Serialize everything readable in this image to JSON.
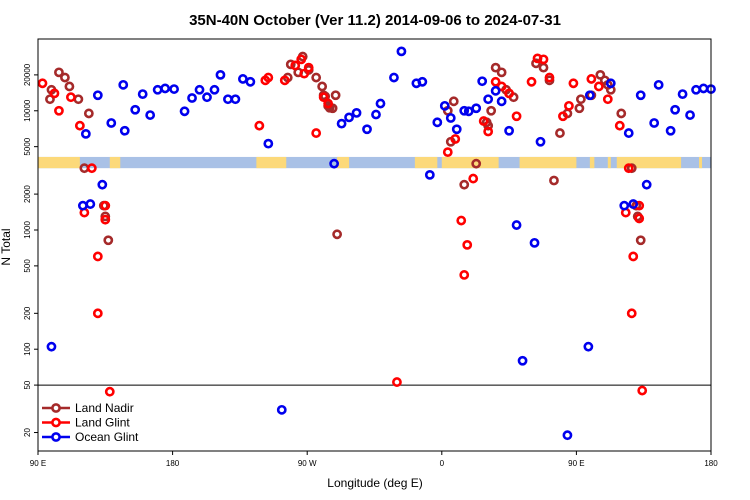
{
  "chart_data": {
    "type": "scatter",
    "title": "35N-40N October (Ver 11.2)   2014-09-06 to 2024-07-31",
    "xlabel": "Longitude (deg E)",
    "ylabel": "N Total",
    "x_scale": "linear",
    "y_scale": "log",
    "xlim": [
      90,
      540
    ],
    "ylim": [
      14,
      40000
    ],
    "x_ticks": [
      {
        "value": 90,
        "label": "90 E"
      },
      {
        "value": 180,
        "label": "180"
      },
      {
        "value": 270,
        "label": "90 W"
      },
      {
        "value": 360,
        "label": "0"
      },
      {
        "value": 450,
        "label": "90 E"
      },
      {
        "value": 540,
        "label": "180"
      }
    ],
    "y_ticks": [
      {
        "value": 20,
        "label": "20"
      },
      {
        "value": 50,
        "label": "50"
      },
      {
        "value": 100,
        "label": "100"
      },
      {
        "value": 200,
        "label": "200"
      },
      {
        "value": 500,
        "label": "500"
      },
      {
        "value": 1000,
        "label": "1000"
      },
      {
        "value": 2000,
        "label": "2000"
      },
      {
        "value": 5000,
        "label": "5000"
      },
      {
        "value": 10000,
        "label": "10000"
      },
      {
        "value": 20000,
        "label": "20000"
      }
    ],
    "reference_line_y": 50,
    "land_mask_band": {
      "y_range": [
        3300,
        4100
      ],
      "land_color": "#fcd97a",
      "ocean_color": "#a9c1e6",
      "land_longitudes": [
        [
          90,
          118
        ],
        [
          138,
          145
        ],
        [
          236,
          256
        ],
        [
          290,
          298
        ],
        [
          342,
          357
        ],
        [
          360,
          398
        ],
        [
          412,
          450
        ],
        [
          459,
          462
        ],
        [
          471,
          473
        ],
        [
          477,
          520
        ],
        [
          532,
          534
        ]
      ]
    },
    "legend": {
      "position": "bottom-left",
      "entries": [
        "Land Nadir",
        "Land Glint",
        "Ocean Glint"
      ]
    },
    "series": [
      {
        "name": "Land Nadir",
        "color": "#a52a2a",
        "points": [
          [
            98,
            12500
          ],
          [
            99,
            15000
          ],
          [
            104,
            21000
          ],
          [
            108,
            19000
          ],
          [
            111,
            16000
          ],
          [
            117,
            12500
          ],
          [
            121,
            3300
          ],
          [
            124,
            9500
          ],
          [
            134,
            1600
          ],
          [
            135,
            1300
          ],
          [
            137,
            820
          ],
          [
            257,
            19000
          ],
          [
            259,
            24500
          ],
          [
            264,
            21000
          ],
          [
            267,
            28500
          ],
          [
            271,
            22000
          ],
          [
            276,
            19000
          ],
          [
            280,
            16000
          ],
          [
            281,
            13500
          ],
          [
            284,
            11000
          ],
          [
            287,
            10500
          ],
          [
            289,
            13500
          ],
          [
            282,
            13200
          ],
          [
            285,
            10600
          ],
          [
            290,
            920
          ],
          [
            364,
            10000
          ],
          [
            366,
            5500
          ],
          [
            368,
            12000
          ],
          [
            375,
            2400
          ],
          [
            383,
            3600
          ],
          [
            390,
            8000
          ],
          [
            391,
            7500
          ],
          [
            393,
            10000
          ],
          [
            396,
            23000
          ],
          [
            400,
            21000
          ],
          [
            403,
            15000
          ],
          [
            408,
            13000
          ],
          [
            423,
            25000
          ],
          [
            428,
            23000
          ],
          [
            432,
            18000
          ],
          [
            435,
            2600
          ],
          [
            439,
            6500
          ],
          [
            444,
            9500
          ],
          [
            452,
            10500
          ],
          [
            453,
            12500
          ],
          [
            460,
            13500
          ],
          [
            466,
            20000
          ],
          [
            469,
            18000
          ],
          [
            471,
            16500
          ],
          [
            473,
            15000
          ],
          [
            480,
            9500
          ],
          [
            487,
            3300
          ],
          [
            490,
            1600
          ],
          [
            491,
            1300
          ],
          [
            493,
            820
          ]
        ]
      },
      {
        "name": "Land Glint",
        "color": "#ff0000",
        "points": [
          [
            93,
            17000
          ],
          [
            101,
            14000
          ],
          [
            104,
            10000
          ],
          [
            112,
            13000
          ],
          [
            118,
            7500
          ],
          [
            121,
            1400
          ],
          [
            126,
            3300
          ],
          [
            130,
            600
          ],
          [
            135,
            1600
          ],
          [
            135,
            1220
          ],
          [
            138,
            44
          ],
          [
            130,
            200
          ],
          [
            238,
            7500
          ],
          [
            242,
            18000
          ],
          [
            244,
            19000
          ],
          [
            255,
            18000
          ],
          [
            262,
            24000
          ],
          [
            266,
            27000
          ],
          [
            268,
            20500
          ],
          [
            271,
            23000
          ],
          [
            276,
            6500
          ],
          [
            281,
            13000
          ],
          [
            284,
            11500
          ],
          [
            330,
            53
          ],
          [
            364,
            4500
          ],
          [
            369,
            5800
          ],
          [
            373,
            1200
          ],
          [
            375,
            420
          ],
          [
            377,
            750
          ],
          [
            381,
            2700
          ],
          [
            388,
            8200
          ],
          [
            391,
            6700
          ],
          [
            396,
            17500
          ],
          [
            400,
            16000
          ],
          [
            405,
            14000
          ],
          [
            410,
            9000
          ],
          [
            420,
            17500
          ],
          [
            424,
            27500
          ],
          [
            428,
            27000
          ],
          [
            432,
            19000
          ],
          [
            441,
            9000
          ],
          [
            445,
            11000
          ],
          [
            448,
            17000
          ],
          [
            460,
            18500
          ],
          [
            465,
            16000
          ],
          [
            471,
            12500
          ],
          [
            479,
            7500
          ],
          [
            483,
            1400
          ],
          [
            485,
            3300
          ],
          [
            487,
            200
          ],
          [
            488,
            600
          ],
          [
            492,
            1600
          ],
          [
            492,
            1250
          ],
          [
            494,
            45
          ]
        ]
      },
      {
        "name": "Ocean Glint",
        "color": "#0000ee",
        "points": [
          [
            99,
            105
          ],
          [
            120,
            1600
          ],
          [
            122,
            6400
          ],
          [
            125,
            1650
          ],
          [
            130,
            13500
          ],
          [
            133,
            2400
          ],
          [
            139,
            7900
          ],
          [
            148,
            6800
          ],
          [
            147,
            16500
          ],
          [
            155,
            10200
          ],
          [
            160,
            13800
          ],
          [
            165,
            9200
          ],
          [
            170,
            15000
          ],
          [
            175,
            15400
          ],
          [
            181,
            15200
          ],
          [
            188,
            9900
          ],
          [
            193,
            12800
          ],
          [
            198,
            15000
          ],
          [
            203,
            13000
          ],
          [
            208,
            15000
          ],
          [
            212,
            20000
          ],
          [
            217,
            12500
          ],
          [
            222,
            12500
          ],
          [
            227,
            18500
          ],
          [
            232,
            17500
          ],
          [
            244,
            5300
          ],
          [
            253,
            31
          ],
          [
            288,
            3600
          ],
          [
            293,
            7800
          ],
          [
            298,
            8800
          ],
          [
            303,
            9600
          ],
          [
            310,
            7000
          ],
          [
            316,
            9300
          ],
          [
            319,
            11500
          ],
          [
            328,
            19000
          ],
          [
            333,
            31500
          ],
          [
            343,
            17000
          ],
          [
            347,
            17500
          ],
          [
            352,
            2900
          ],
          [
            357,
            8000
          ],
          [
            362,
            11000
          ],
          [
            366,
            8700
          ],
          [
            370,
            7000
          ],
          [
            375,
            10000
          ],
          [
            378,
            9900
          ],
          [
            383,
            10500
          ],
          [
            387,
            17700
          ],
          [
            391,
            12500
          ],
          [
            396,
            14700
          ],
          [
            400,
            12000
          ],
          [
            405,
            6800
          ],
          [
            410,
            1100
          ],
          [
            414,
            80
          ],
          [
            422,
            780
          ],
          [
            426,
            5500
          ],
          [
            444,
            19
          ],
          [
            459,
            13500
          ],
          [
            473,
            17000
          ],
          [
            482,
            1600
          ],
          [
            485,
            6500
          ],
          [
            488,
            1650
          ],
          [
            493,
            13500
          ],
          [
            497,
            2400
          ],
          [
            502,
            7900
          ],
          [
            505,
            16500
          ],
          [
            513,
            6800
          ],
          [
            516,
            10200
          ],
          [
            521,
            13800
          ],
          [
            526,
            9200
          ],
          [
            530,
            15000
          ],
          [
            535,
            15400
          ],
          [
            540,
            15200
          ],
          [
            458,
            105
          ]
        ]
      }
    ]
  }
}
